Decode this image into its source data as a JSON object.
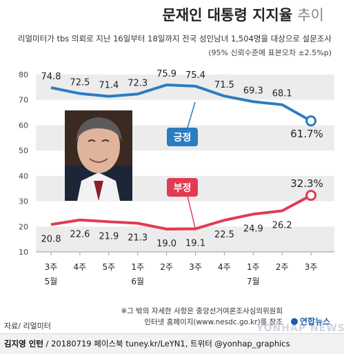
{
  "header": {
    "title_main": "문재인 대통령 지지율",
    "title_sub": "추이",
    "survey_note": "리얼미터가 tbs 의뢰로 지난 16일부터 18일까지 전국 성인남녀 1,504명을 대상으로 설문조사",
    "margin_note": "(95% 신뢰수준에 표본오차 ±2.5%p)"
  },
  "chart_data": {
    "type": "line",
    "categories": [
      "3주",
      "4주",
      "5주",
      "1주",
      "2주",
      "3주",
      "4주",
      "1주",
      "2주",
      "3주"
    ],
    "month_labels": [
      {
        "index": 0,
        "label": "5월"
      },
      {
        "index": 3,
        "label": "6월"
      },
      {
        "index": 7,
        "label": "7월"
      }
    ],
    "yticks": [
      10,
      20,
      30,
      40,
      50,
      60,
      70,
      80
    ],
    "ylim": [
      10,
      80
    ],
    "grid": "alternating-bands",
    "series": [
      {
        "name": "긍정",
        "color": "#2b7cc1",
        "values": [
          74.8,
          72.5,
          71.4,
          72.3,
          75.9,
          75.4,
          71.5,
          69.3,
          68.1,
          61.7
        ],
        "labels": [
          "74.8",
          "72.5",
          "71.4",
          "72.3",
          "75.9",
          "75.4",
          "71.5",
          "69.3",
          "68.1",
          "61.7%"
        ]
      },
      {
        "name": "부정",
        "color": "#e23a52",
        "values": [
          20.8,
          22.6,
          21.9,
          21.3,
          19.0,
          19.1,
          22.5,
          24.9,
          26.2,
          32.3
        ],
        "labels": [
          "20.8",
          "22.6",
          "21.9",
          "21.3",
          "19.0",
          "19.1",
          "22.5",
          "24.9",
          "26.2",
          "32.3%"
        ]
      }
    ]
  },
  "footer": {
    "footnote_1": "※그 밖의 자세한 사항은 중앙선거여론조사심의위원회",
    "footnote_2": "인터넷 홈페이지(www.nesdc.go.kr)를 참조",
    "source_label": "자료/ 리얼미터",
    "credit_author": "김지영 인턴",
    "credit_rest": " / 20180719 페이스북 tuney.kr/LeYN1, 트위터 @yonhap_graphics",
    "logo_text": "연합뉴스",
    "watermark_text": "YONHAP NEWS"
  }
}
